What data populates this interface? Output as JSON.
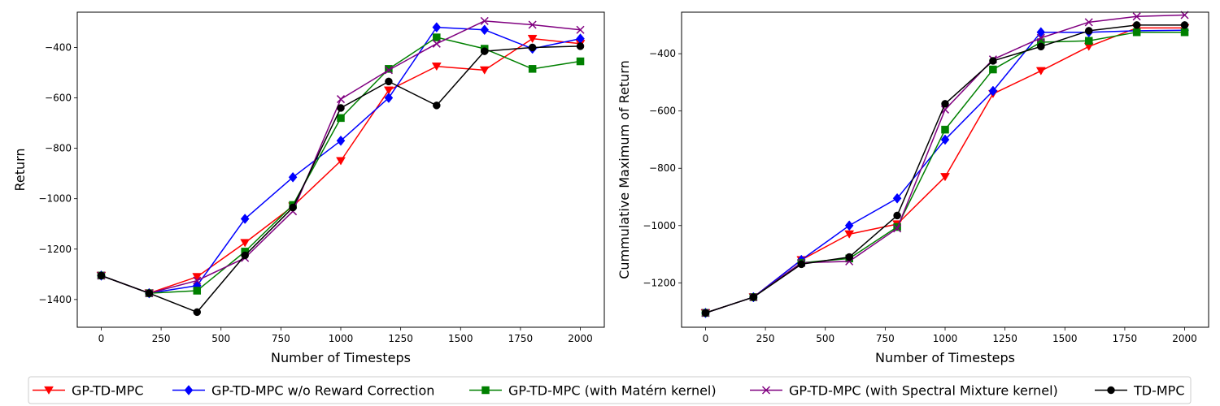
{
  "chart_data": [
    {
      "type": "line",
      "xlabel": "Number of Timesteps",
      "ylabel": "Return",
      "xlim": [
        -100,
        2100
      ],
      "ylim": [
        -1510,
        -260
      ],
      "xticks": [
        0,
        250,
        500,
        750,
        1000,
        1250,
        1500,
        1750,
        2000
      ],
      "yticks": [
        -1400,
        -1200,
        -1000,
        -800,
        -600,
        -400
      ],
      "grid": false,
      "x": [
        0,
        200,
        400,
        600,
        800,
        1000,
        1200,
        1400,
        1600,
        1800,
        2000
      ],
      "series": [
        {
          "name": "GP-TD-MPC",
          "color": "#ff0000",
          "marker": "triangle-down",
          "values": [
            -1305,
            -1375,
            -1310,
            -1175,
            -1030,
            -850,
            -570,
            -475,
            -490,
            -365,
            -385
          ]
        },
        {
          "name": "GP-TD-MPC w/o Reward Correction",
          "color": "#0000ff",
          "marker": "diamond",
          "values": [
            -1305,
            -1375,
            -1345,
            -1080,
            -915,
            -770,
            -600,
            -320,
            -330,
            -405,
            -365
          ]
        },
        {
          "name": "GP-TD-MPC (with Matérn kernel)",
          "color": "#008000",
          "marker": "square",
          "values": [
            -1305,
            -1375,
            -1365,
            -1210,
            -1025,
            -680,
            -485,
            -360,
            -405,
            -485,
            -455
          ]
        },
        {
          "name": "GP-TD-MPC (with Spectral Mixture kernel)",
          "color": "#800080",
          "marker": "x",
          "values": [
            -1305,
            -1375,
            -1325,
            -1235,
            -1050,
            -605,
            -490,
            -385,
            -295,
            -310,
            -330
          ]
        },
        {
          "name": "TD-MPC",
          "color": "#000000",
          "marker": "circle",
          "values": [
            -1305,
            -1375,
            -1450,
            -1225,
            -1035,
            -640,
            -535,
            -630,
            -415,
            -400,
            -395
          ]
        }
      ]
    },
    {
      "type": "line",
      "xlabel": "Number of Timesteps",
      "ylabel": "Cummulative Maximum of Return",
      "xlim": [
        -100,
        2100
      ],
      "ylim": [
        -1355,
        -255
      ],
      "xticks": [
        0,
        250,
        500,
        750,
        1000,
        1250,
        1500,
        1750,
        2000
      ],
      "yticks": [
        -1200,
        -1000,
        -800,
        -600,
        -400
      ],
      "grid": false,
      "x": [
        0,
        200,
        400,
        600,
        800,
        1000,
        1200,
        1400,
        1600,
        1800,
        2000
      ],
      "series": [
        {
          "name": "GP-TD-MPC",
          "color": "#ff0000",
          "marker": "triangle-down",
          "values": [
            -1305,
            -1250,
            -1120,
            -1030,
            -995,
            -830,
            -540,
            -460,
            -375,
            -310,
            -310
          ]
        },
        {
          "name": "GP-TD-MPC w/o Reward Correction",
          "color": "#0000ff",
          "marker": "diamond",
          "values": [
            -1305,
            -1250,
            -1120,
            -1000,
            -905,
            -700,
            -530,
            -325,
            -325,
            -320,
            -318
          ]
        },
        {
          "name": "GP-TD-MPC (with Matérn kernel)",
          "color": "#008000",
          "marker": "square",
          "values": [
            -1305,
            -1250,
            -1130,
            -1115,
            -1005,
            -665,
            -455,
            -360,
            -355,
            -325,
            -325
          ]
        },
        {
          "name": "GP-TD-MPC (with Spectral Mixture kernel)",
          "color": "#800080",
          "marker": "x",
          "values": [
            -1305,
            -1250,
            -1130,
            -1125,
            -1010,
            -595,
            -420,
            -345,
            -290,
            -270,
            -265
          ]
        },
        {
          "name": "TD-MPC",
          "color": "#000000",
          "marker": "circle",
          "values": [
            -1305,
            -1250,
            -1135,
            -1110,
            -965,
            -575,
            -425,
            -375,
            -320,
            -300,
            -300
          ]
        }
      ]
    }
  ],
  "legend": {
    "placement": "bottom",
    "items": [
      {
        "label": "GP-TD-MPC",
        "color": "#ff0000",
        "marker": "triangle-down"
      },
      {
        "label": "GP-TD-MPC w/o Reward Correction",
        "color": "#0000ff",
        "marker": "diamond"
      },
      {
        "label": "GP-TD-MPC (with Matérn kernel)",
        "color": "#008000",
        "marker": "square"
      },
      {
        "label": "GP-TD-MPC (with Spectral Mixture kernel)",
        "color": "#800080",
        "marker": "x"
      },
      {
        "label": "TD-MPC",
        "color": "#000000",
        "marker": "circle"
      }
    ]
  }
}
